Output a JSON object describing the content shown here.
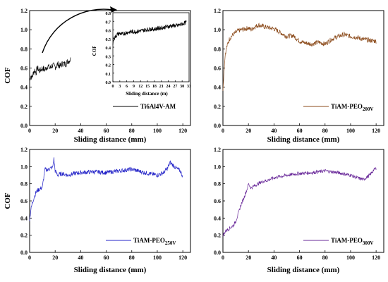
{
  "figure": {
    "panels": [
      {
        "id": "a",
        "series_color": "#000000",
        "ylabel": "COF",
        "xlabel": "Sliding distance (mm)",
        "legend": {
          "base": "Ti6Al4V-AM",
          "sub": ""
        },
        "y_ticks": [
          "0.0",
          "0.2",
          "0.4",
          "0.6",
          "0.8",
          "1.0",
          "1.2"
        ],
        "x_ticks": [
          "0",
          "20",
          "40",
          "60",
          "80",
          "100",
          "120"
        ],
        "inset": {
          "ylabel": "COF",
          "xlabel": "Sliding distance (m)",
          "y_ticks": [
            "0.0",
            "0.1",
            "0.2",
            "0.3",
            "0.4",
            "0.5",
            "0.6",
            "0.7",
            "0.8"
          ],
          "x_ticks": [
            "0",
            "3",
            "6",
            "9",
            "12",
            "15",
            "18",
            "21",
            "24",
            "27",
            "30",
            "33"
          ]
        }
      },
      {
        "id": "b",
        "series_color": "#8b4a1a",
        "ylabel": "",
        "xlabel": "Sliding distance (mm)",
        "legend": {
          "base": "TiAM-PEO",
          "sub": "200V"
        },
        "y_ticks": [
          "0.0",
          "0.2",
          "0.4",
          "0.6",
          "0.8",
          "1.0",
          "1.2"
        ],
        "x_ticks": [
          "0",
          "20",
          "40",
          "60",
          "80",
          "100",
          "120"
        ]
      },
      {
        "id": "c",
        "series_color": "#2424c8",
        "ylabel": "COF",
        "xlabel": "Sliding distance (mm)",
        "legend": {
          "base": "TiAM-PEO",
          "sub": "250V"
        },
        "y_ticks": [
          "0.0",
          "0.2",
          "0.4",
          "0.6",
          "0.8",
          "1.0",
          "1.2"
        ],
        "x_ticks": [
          "0",
          "20",
          "40",
          "60",
          "80",
          "100",
          "120"
        ]
      },
      {
        "id": "d",
        "series_color": "#6a2a9a",
        "ylabel": "",
        "xlabel": "Sliding distance (mm)",
        "legend": {
          "base": "TiAM-PEO",
          "sub": "300V"
        },
        "y_ticks": [
          "0.0",
          "0.2",
          "0.4",
          "0.6",
          "0.8",
          "1.0",
          "1.2"
        ],
        "x_ticks": [
          "0",
          "20",
          "40",
          "60",
          "80",
          "100",
          "120"
        ]
      }
    ]
  },
  "chart_data": [
    {
      "type": "line",
      "xlabel": "Sliding distance (mm)",
      "ylabel": "COF",
      "xlim": [
        0,
        126
      ],
      "ylim": [
        0,
        1.2
      ],
      "series": [
        {
          "name": "Ti6Al4V-AM",
          "x": [
            0,
            1,
            2,
            3,
            4,
            5,
            6,
            8,
            10,
            12,
            14,
            16,
            18,
            20,
            22,
            24,
            26,
            28,
            30,
            32
          ],
          "y": [
            0.48,
            0.52,
            0.5,
            0.55,
            0.58,
            0.55,
            0.6,
            0.57,
            0.6,
            0.58,
            0.62,
            0.6,
            0.63,
            0.61,
            0.64,
            0.62,
            0.65,
            0.64,
            0.67,
            0.69
          ]
        }
      ],
      "inset": {
        "xlabel": "Sliding distance (m)",
        "ylabel": "COF",
        "xlim": [
          0,
          33
        ],
        "ylim": [
          0,
          0.8
        ],
        "series": [
          {
            "name": "Ti6Al4V-AM",
            "x": [
              0,
              0.5,
              1,
              2,
              3,
              4,
              6,
              8,
              10,
              12,
              14,
              16,
              18,
              20,
              22,
              24,
              26,
              28,
              30,
              32
            ],
            "y": [
              0.45,
              0.5,
              0.52,
              0.55,
              0.56,
              0.55,
              0.57,
              0.58,
              0.58,
              0.59,
              0.6,
              0.61,
              0.61,
              0.62,
              0.63,
              0.64,
              0.65,
              0.65,
              0.67,
              0.69
            ]
          }
        ]
      }
    },
    {
      "type": "line",
      "xlabel": "Sliding distance (mm)",
      "ylabel": "",
      "xlim": [
        0,
        126
      ],
      "ylim": [
        0,
        1.2
      ],
      "series": [
        {
          "name": "TiAM-PEO200V",
          "x": [
            0,
            0.5,
            1,
            1.5,
            2,
            3,
            4,
            5,
            6,
            8,
            10,
            12,
            15,
            18,
            20,
            22,
            25,
            28,
            30,
            33,
            36,
            40,
            45,
            50,
            55,
            60,
            65,
            70,
            75,
            80,
            85,
            90,
            95,
            100,
            105,
            110,
            115,
            120
          ],
          "y": [
            0.38,
            0.5,
            0.6,
            0.7,
            0.76,
            0.82,
            0.86,
            0.9,
            0.92,
            0.95,
            0.97,
            0.99,
            1.0,
            1.01,
            1.02,
            1.0,
            1.03,
            1.05,
            1.04,
            1.03,
            1.02,
            1.01,
            0.97,
            0.93,
            0.94,
            0.88,
            0.86,
            0.85,
            0.87,
            0.85,
            0.9,
            0.93,
            0.95,
            0.93,
            0.92,
            0.9,
            0.89,
            0.88
          ]
        }
      ]
    },
    {
      "type": "line",
      "xlabel": "Sliding distance (mm)",
      "ylabel": "COF",
      "xlim": [
        0,
        126
      ],
      "ylim": [
        0,
        1.2
      ],
      "series": [
        {
          "name": "TiAM-PEO250V",
          "x": [
            0,
            0.5,
            1,
            2,
            3,
            4,
            5,
            6,
            8,
            10,
            12,
            14,
            16,
            18,
            19,
            20,
            22,
            25,
            30,
            35,
            40,
            50,
            60,
            70,
            80,
            90,
            100,
            105,
            108,
            110,
            112,
            115,
            118,
            120
          ],
          "y": [
            0.38,
            0.44,
            0.5,
            0.57,
            0.62,
            0.66,
            0.7,
            0.72,
            0.74,
            0.76,
            0.97,
            0.96,
            0.98,
            0.99,
            1.09,
            0.95,
            0.9,
            0.92,
            0.9,
            0.92,
            0.93,
            0.94,
            0.93,
            0.95,
            0.97,
            0.93,
            0.9,
            0.93,
            0.98,
            1.05,
            1.02,
            0.98,
            0.95,
            0.88
          ]
        }
      ]
    },
    {
      "type": "line",
      "xlabel": "Sliding distance (mm)",
      "ylabel": "",
      "xlim": [
        0,
        126
      ],
      "ylim": [
        0,
        1.2
      ],
      "series": [
        {
          "name": "TiAM-PEO300V",
          "x": [
            0,
            1,
            2,
            3,
            4,
            5,
            6,
            8,
            10,
            12,
            14,
            16,
            18,
            19,
            20,
            22,
            25,
            30,
            35,
            40,
            50,
            60,
            70,
            80,
            90,
            100,
            105,
            110,
            115,
            118,
            120
          ],
          "y": [
            0.2,
            0.22,
            0.25,
            0.26,
            0.27,
            0.28,
            0.29,
            0.31,
            0.36,
            0.45,
            0.55,
            0.62,
            0.7,
            0.74,
            0.8,
            0.75,
            0.78,
            0.82,
            0.84,
            0.87,
            0.9,
            0.92,
            0.93,
            0.95,
            0.93,
            0.9,
            0.87,
            0.85,
            0.9,
            0.96,
            0.98
          ]
        }
      ]
    }
  ]
}
